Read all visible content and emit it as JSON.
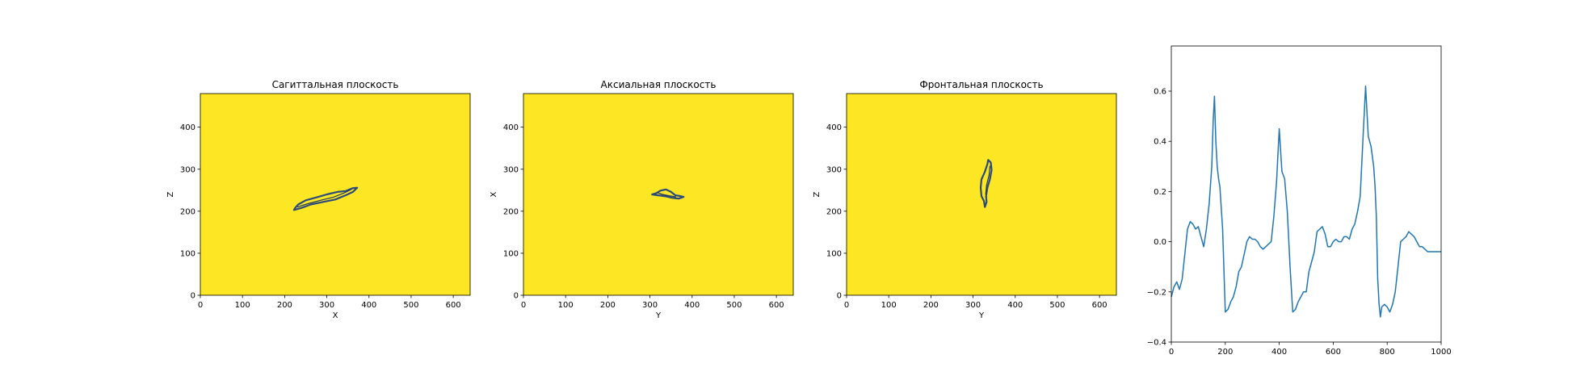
{
  "colors": {
    "field": "#fde725",
    "contour": "#2b4a7a",
    "contour_dark": "#1f3560",
    "signal": "#1f77b4",
    "axes": "#000000"
  },
  "chart_data": [
    {
      "type": "heatmap",
      "title": "Сагиттальная плоскость",
      "xlabel": "X",
      "ylabel": "Z",
      "xlim": [
        0,
        640
      ],
      "ylim": [
        480,
        0
      ],
      "xticks": [
        0,
        100,
        200,
        300,
        400,
        500,
        600
      ],
      "yticks": [
        0,
        100,
        200,
        300,
        400
      ],
      "grid": false,
      "contour": [
        [
          222,
          203
        ],
        [
          240,
          208
        ],
        [
          262,
          216
        ],
        [
          290,
          222
        ],
        [
          320,
          228
        ],
        [
          345,
          238
        ],
        [
          362,
          246
        ],
        [
          372,
          256
        ],
        [
          362,
          255
        ],
        [
          345,
          248
        ],
        [
          325,
          246
        ],
        [
          300,
          240
        ],
        [
          272,
          232
        ],
        [
          250,
          226
        ],
        [
          232,
          216
        ],
        [
          225,
          208
        ],
        [
          222,
          203
        ]
      ],
      "inner_contour": [
        [
          230,
          210
        ],
        [
          255,
          218
        ],
        [
          285,
          226
        ],
        [
          315,
          233
        ],
        [
          340,
          243
        ],
        [
          358,
          252
        ]
      ]
    },
    {
      "type": "heatmap",
      "title": "Аксиальная плоскость",
      "xlabel": "Y",
      "ylabel": "X",
      "xlim": [
        0,
        640
      ],
      "ylim": [
        480,
        0
      ],
      "xticks": [
        0,
        100,
        200,
        300,
        400,
        500,
        600
      ],
      "yticks": [
        0,
        100,
        200,
        300,
        400
      ],
      "grid": false,
      "contour": [
        [
          305,
          240
        ],
        [
          318,
          238
        ],
        [
          335,
          236
        ],
        [
          352,
          232
        ],
        [
          368,
          230
        ],
        [
          380,
          234
        ],
        [
          372,
          236
        ],
        [
          360,
          238
        ],
        [
          350,
          246
        ],
        [
          338,
          252
        ],
        [
          325,
          249
        ],
        [
          315,
          243
        ],
        [
          305,
          240
        ]
      ],
      "inner_contour": [
        [
          318,
          244
        ],
        [
          330,
          240
        ],
        [
          345,
          237
        ],
        [
          362,
          234
        ]
      ]
    },
    {
      "type": "heatmap",
      "title": "Фронтальная плоскость",
      "xlabel": "Y",
      "ylabel": "Z",
      "xlim": [
        0,
        640
      ],
      "ylim": [
        480,
        0
      ],
      "xticks": [
        0,
        100,
        200,
        300,
        400,
        500,
        600
      ],
      "yticks": [
        0,
        100,
        200,
        300,
        400
      ],
      "grid": false,
      "contour": [
        [
          328,
          210
        ],
        [
          332,
          222
        ],
        [
          331,
          236
        ],
        [
          334,
          256
        ],
        [
          340,
          276
        ],
        [
          344,
          298
        ],
        [
          342,
          316
        ],
        [
          336,
          322
        ],
        [
          334,
          312
        ],
        [
          328,
          294
        ],
        [
          320,
          276
        ],
        [
          318,
          256
        ],
        [
          320,
          236
        ],
        [
          326,
          224
        ],
        [
          328,
          210
        ]
      ],
      "inner_contour": [
        [
          330,
          240
        ],
        [
          332,
          262
        ],
        [
          338,
          286
        ],
        [
          340,
          308
        ]
      ]
    },
    {
      "type": "line",
      "title": "",
      "xlabel": "",
      "ylabel": "",
      "xlim": [
        0,
        1000
      ],
      "ylim": [
        -0.4,
        0.78
      ],
      "xticks": [
        0,
        200,
        400,
        600,
        800,
        1000
      ],
      "yticks": [
        -0.4,
        -0.2,
        0.0,
        0.2,
        0.4,
        0.6
      ],
      "ytick_labels": [
        "−0.4",
        "−0.2",
        "0.0",
        "0.2",
        "0.4",
        "0.6"
      ],
      "grid": false,
      "series": [
        {
          "x": [
            0,
            10,
            20,
            30,
            40,
            50,
            60,
            70,
            80,
            90,
            100,
            110,
            120,
            130,
            140,
            150,
            155,
            160,
            165,
            170,
            175,
            180,
            190,
            200,
            210,
            220,
            230,
            240,
            250,
            260,
            270,
            280,
            290,
            300,
            310,
            320,
            330,
            340,
            350,
            360,
            370,
            380,
            390,
            400,
            410,
            420,
            430,
            440,
            450,
            460,
            470,
            480,
            490,
            500,
            510,
            520,
            530,
            540,
            550,
            560,
            570,
            580,
            590,
            600,
            610,
            620,
            630,
            640,
            650,
            660,
            670,
            680,
            690,
            700,
            710,
            720,
            730,
            740,
            750,
            755,
            760,
            765,
            770,
            775,
            780,
            790,
            800,
            810,
            820,
            830,
            840,
            850,
            860,
            870,
            880,
            890,
            900,
            910,
            920,
            930,
            940,
            950,
            960,
            970,
            980,
            990,
            1000
          ],
          "y": [
            -0.22,
            -0.18,
            -0.16,
            -0.19,
            -0.15,
            -0.05,
            0.05,
            0.08,
            0.07,
            0.05,
            0.06,
            0.02,
            -0.02,
            0.05,
            0.15,
            0.3,
            0.48,
            0.58,
            0.4,
            0.3,
            0.25,
            0.22,
            0.05,
            -0.28,
            -0.27,
            -0.24,
            -0.22,
            -0.18,
            -0.12,
            -0.1,
            -0.05,
            0.0,
            0.02,
            0.01,
            0.01,
            0.0,
            -0.02,
            -0.03,
            -0.02,
            -0.01,
            0.0,
            0.1,
            0.24,
            0.45,
            0.28,
            0.25,
            0.12,
            -0.1,
            -0.28,
            -0.27,
            -0.24,
            -0.22,
            -0.2,
            -0.2,
            -0.12,
            -0.08,
            -0.04,
            0.04,
            0.05,
            0.06,
            0.03,
            -0.02,
            -0.02,
            0.0,
            0.01,
            0.0,
            0.0,
            0.02,
            0.02,
            0.01,
            0.05,
            0.07,
            0.12,
            0.18,
            0.4,
            0.62,
            0.42,
            0.38,
            0.3,
            0.22,
            0.1,
            -0.15,
            -0.25,
            -0.3,
            -0.26,
            -0.25,
            -0.26,
            -0.28,
            -0.25,
            -0.2,
            -0.1,
            0.0,
            0.01,
            0.02,
            0.04,
            0.03,
            0.02,
            0.0,
            -0.02,
            -0.02,
            -0.03,
            -0.04,
            -0.04,
            -0.04,
            -0.04,
            -0.04,
            -0.04
          ]
        }
      ]
    }
  ]
}
